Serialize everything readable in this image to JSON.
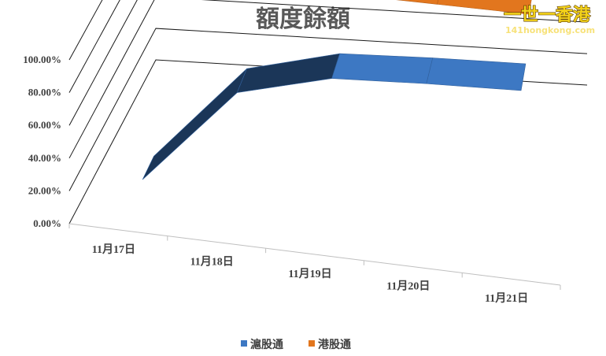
{
  "chart_data": {
    "type": "line",
    "title": "額度餘額",
    "categories": [
      "11月17日",
      "11月18日",
      "11月19日",
      "11月20日",
      "11月21日"
    ],
    "series": [
      {
        "name": "滬股通",
        "values": [
          0,
          60,
          75,
          78,
          80
        ],
        "color": "#3d78c3"
      },
      {
        "name": "港股通",
        "values": [
          97.5,
          100,
          101,
          100,
          99
        ],
        "color": "#e2761e"
      }
    ],
    "ylim": [
      0,
      100
    ],
    "yticks": [
      "0.00%",
      "20.00%",
      "40.00%",
      "60.00%",
      "80.00%",
      "100.00%"
    ],
    "grid": true,
    "perspective_3d": true,
    "legend_position": "bottom"
  },
  "watermark": {
    "main": "一世一香港",
    "sub": "141hongkong.com"
  }
}
